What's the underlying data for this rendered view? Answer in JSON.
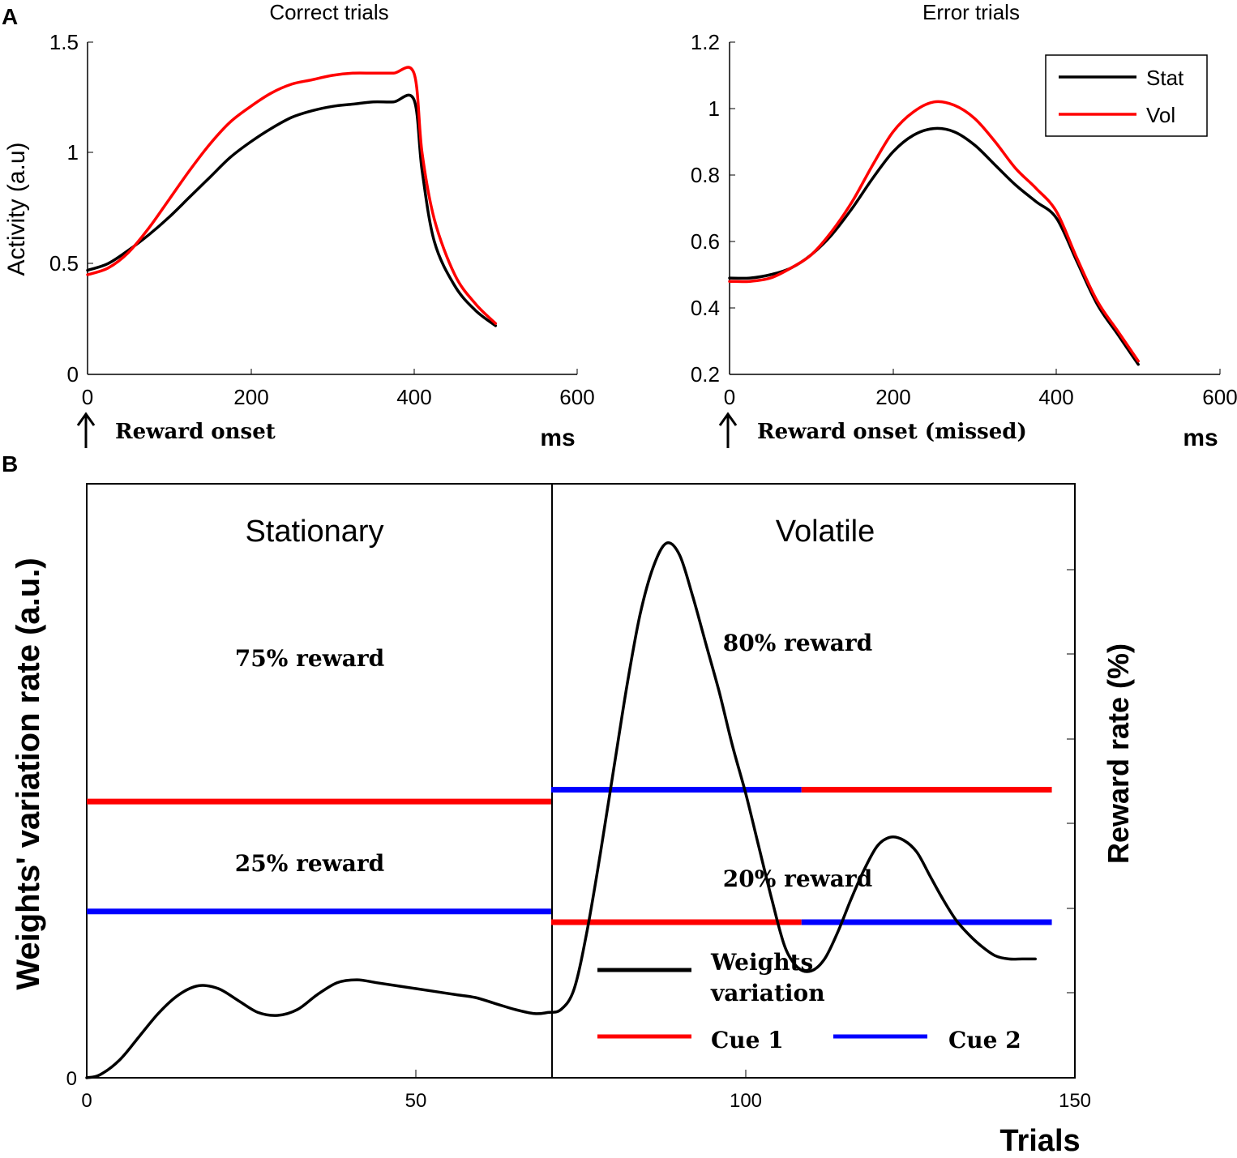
{
  "panel_labels": {
    "a": "A",
    "b": "B"
  },
  "colors": {
    "stat": "#000000",
    "vol": "#ff0000",
    "cue1": "#ff0000",
    "cue2": "#0000ff",
    "weights": "#000000"
  },
  "chart_data": [
    {
      "id": "A-left",
      "type": "line",
      "title": "Correct trials",
      "ylabel": "Activity (a.u)",
      "xunit": "ms",
      "onset_label": "Reward onset",
      "xlim": [
        0,
        600
      ],
      "ylim": [
        0,
        1.5
      ],
      "xticks": [
        0,
        200,
        400,
        600
      ],
      "yticks": [
        0,
        0.5,
        1,
        1.5
      ],
      "ytick_labels": [
        "0",
        "0.5",
        "1",
        "1.5"
      ],
      "grid": false,
      "series": [
        {
          "name": "Stat",
          "color": "#000000",
          "x": [
            0,
            25,
            50,
            75,
            100,
            125,
            150,
            175,
            200,
            225,
            250,
            275,
            300,
            325,
            350,
            375,
            400,
            410,
            425,
            450,
            475,
            500
          ],
          "y": [
            0.47,
            0.5,
            0.56,
            0.63,
            0.71,
            0.8,
            0.89,
            0.98,
            1.05,
            1.11,
            1.16,
            1.19,
            1.21,
            1.22,
            1.23,
            1.23,
            1.24,
            0.92,
            0.6,
            0.4,
            0.29,
            0.22
          ]
        },
        {
          "name": "Vol",
          "color": "#ff0000",
          "x": [
            0,
            25,
            50,
            75,
            100,
            125,
            150,
            175,
            200,
            225,
            250,
            275,
            300,
            325,
            350,
            375,
            400,
            410,
            425,
            450,
            475,
            500
          ],
          "y": [
            0.45,
            0.48,
            0.55,
            0.66,
            0.79,
            0.92,
            1.04,
            1.14,
            1.21,
            1.27,
            1.31,
            1.33,
            1.35,
            1.36,
            1.36,
            1.36,
            1.36,
            1.0,
            0.7,
            0.45,
            0.32,
            0.23
          ]
        }
      ]
    },
    {
      "id": "A-right",
      "type": "line",
      "title": "Error trials",
      "xunit": "ms",
      "onset_label": "Reward onset (missed)",
      "xlim": [
        0,
        600
      ],
      "ylim": [
        0.2,
        1.2
      ],
      "xticks": [
        0,
        200,
        400,
        600
      ],
      "yticks": [
        0.2,
        0.4,
        0.6,
        0.8,
        1,
        1.2
      ],
      "ytick_labels": [
        "0.2",
        "0.4",
        "0.6",
        "0.8",
        "1",
        "1.2"
      ],
      "grid": false,
      "legend": {
        "position": "top-right",
        "entries": [
          "Stat",
          "Vol"
        ]
      },
      "series": [
        {
          "name": "Stat",
          "color": "#000000",
          "x": [
            0,
            25,
            50,
            75,
            100,
            125,
            150,
            175,
            200,
            225,
            250,
            275,
            300,
            325,
            350,
            375,
            400,
            425,
            450,
            475,
            500
          ],
          "y": [
            0.49,
            0.49,
            0.5,
            0.52,
            0.56,
            0.62,
            0.7,
            0.79,
            0.87,
            0.92,
            0.94,
            0.93,
            0.89,
            0.83,
            0.77,
            0.72,
            0.67,
            0.54,
            0.41,
            0.32,
            0.23
          ]
        },
        {
          "name": "Vol",
          "color": "#ff0000",
          "x": [
            0,
            25,
            50,
            75,
            100,
            125,
            150,
            175,
            200,
            225,
            250,
            275,
            300,
            325,
            350,
            375,
            400,
            425,
            450,
            475,
            500
          ],
          "y": [
            0.48,
            0.48,
            0.49,
            0.52,
            0.56,
            0.63,
            0.72,
            0.83,
            0.93,
            0.99,
            1.02,
            1.01,
            0.97,
            0.9,
            0.82,
            0.76,
            0.69,
            0.55,
            0.42,
            0.33,
            0.24
          ]
        }
      ]
    },
    {
      "id": "B",
      "type": "line",
      "xlabel": "Trials",
      "ylabel": "Weights' variation rate (a.u.)",
      "ylabel_right": "Reward rate (%)",
      "xlim": [
        0,
        150
      ],
      "ylim": [
        0,
        1
      ],
      "xticks": [
        0,
        50,
        100,
        150
      ],
      "ytick_labels": [
        "0"
      ],
      "right_tick_count": 7,
      "divider_x": 70.5,
      "regions": [
        "Stationary",
        "Volatile"
      ],
      "grid": false,
      "weights_series": {
        "name": "Weights variation",
        "color": "#000000",
        "x": [
          0,
          2,
          5,
          8,
          11,
          14,
          17,
          20,
          23,
          26,
          29,
          32,
          35,
          38,
          41,
          44,
          47,
          50,
          53,
          56,
          59,
          62,
          65,
          68,
          70,
          72,
          74,
          76,
          78,
          80,
          82,
          84,
          86,
          88,
          90,
          92,
          94,
          96,
          98,
          100,
          102,
          104,
          106,
          108,
          110,
          112,
          114,
          116,
          118,
          120,
          122,
          124,
          126,
          128,
          130,
          132,
          134,
          136,
          138,
          140,
          142,
          144
        ],
        "y": [
          0.0,
          0.005,
          0.03,
          0.07,
          0.11,
          0.14,
          0.155,
          0.15,
          0.13,
          0.11,
          0.105,
          0.115,
          0.14,
          0.16,
          0.165,
          0.16,
          0.155,
          0.15,
          0.145,
          0.14,
          0.135,
          0.125,
          0.115,
          0.108,
          0.11,
          0.115,
          0.15,
          0.25,
          0.38,
          0.52,
          0.66,
          0.78,
          0.86,
          0.9,
          0.88,
          0.81,
          0.73,
          0.65,
          0.56,
          0.48,
          0.39,
          0.3,
          0.22,
          0.185,
          0.18,
          0.2,
          0.245,
          0.3,
          0.35,
          0.39,
          0.405,
          0.4,
          0.38,
          0.34,
          0.3,
          0.265,
          0.24,
          0.22,
          0.205,
          0.2,
          0.2,
          0.2
        ]
      },
      "reward_segments": [
        {
          "cue": "Cue 1",
          "color": "#ff0000",
          "x": [
            0,
            70.5
          ],
          "level": 0.465
        },
        {
          "cue": "Cue 2",
          "color": "#0000ff",
          "x": [
            0,
            70.5
          ],
          "level": 0.28
        },
        {
          "cue": "Cue 2",
          "color": "#0000ff",
          "x": [
            70.5,
            108.5
          ],
          "level": 0.485
        },
        {
          "cue": "Cue 1",
          "color": "#ff0000",
          "x": [
            108.5,
            146.5
          ],
          "level": 0.485
        },
        {
          "cue": "Cue 1",
          "color": "#ff0000",
          "x": [
            70.5,
            108.5
          ],
          "level": 0.262
        },
        {
          "cue": "Cue 2",
          "color": "#0000ff",
          "x": [
            108.5,
            146.5
          ],
          "level": 0.262
        }
      ],
      "reward_labels": [
        "75% reward",
        "25% reward",
        "80% reward",
        "20% reward"
      ],
      "legend": {
        "position": "bottom-right",
        "entries": [
          "Weights variation",
          "Cue 1",
          "Cue 2"
        ]
      }
    }
  ]
}
